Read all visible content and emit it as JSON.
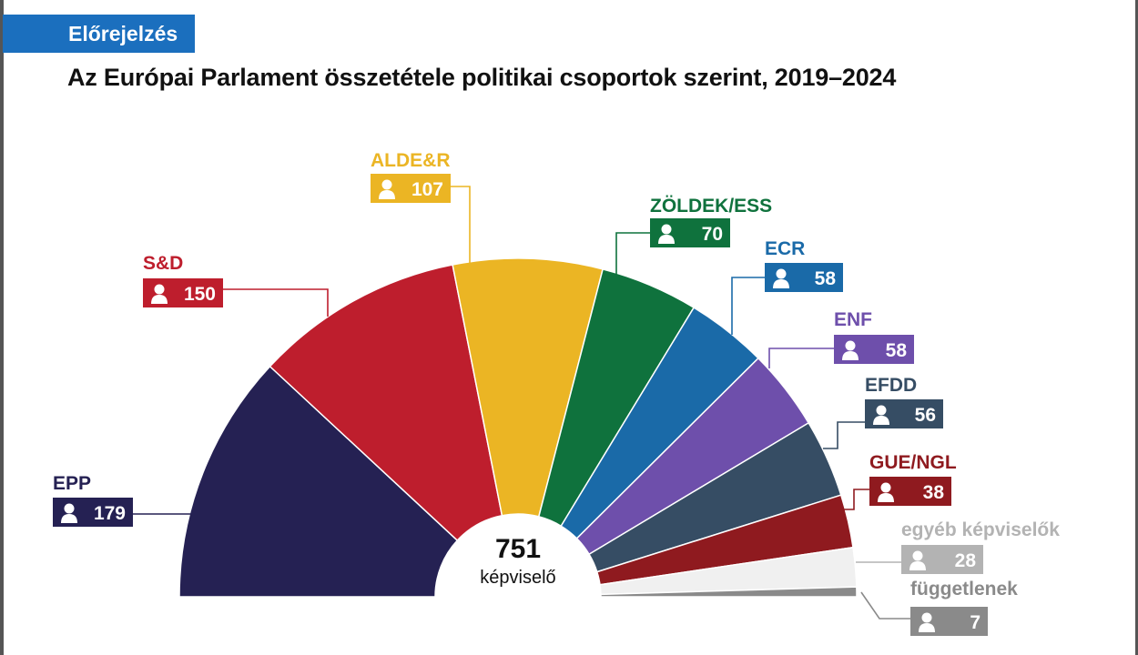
{
  "header": {
    "tag": "Előrejelzés",
    "title": "Az Európai Parlament összetétele politikai csoportok szerint, 2019–2024"
  },
  "chart_data": {
    "type": "pie",
    "variant": "half-donut (parliament)",
    "title": "Az Európai Parlament összetétele politikai csoportok szerint, 2019–2024",
    "center": {
      "total": "751",
      "unit": "képviselő"
    },
    "series": [
      {
        "name": "EPP",
        "value": 179,
        "color": "#252153",
        "label_color": "#252153",
        "badge_color": "#252153"
      },
      {
        "name": "S&D",
        "value": 150,
        "color": "#be1e2d",
        "label_color": "#be1e2d",
        "badge_color": "#be1e2d"
      },
      {
        "name": "ALDE&R",
        "value": 107,
        "color": "#ebb524",
        "label_color": "#ebb524",
        "badge_color": "#ebb524"
      },
      {
        "name": "ZÖLDEK/ESS",
        "value": 70,
        "color": "#0f723d",
        "label_color": "#0f723d",
        "badge_color": "#0f723d"
      },
      {
        "name": "ECR",
        "value": 58,
        "color": "#1a6aa8",
        "label_color": "#1a6aa8",
        "badge_color": "#1a6aa8"
      },
      {
        "name": "ENF",
        "value": 58,
        "color": "#6e4fab",
        "label_color": "#6e4fab",
        "badge_color": "#6e4fab"
      },
      {
        "name": "EFDD",
        "value": 56,
        "color": "#364d64",
        "label_color": "#364d64",
        "badge_color": "#364d64"
      },
      {
        "name": "GUE/NGL",
        "value": 38,
        "color": "#8f1a1f",
        "label_color": "#8f1a1f",
        "badge_color": "#8f1a1f"
      },
      {
        "name": "egyéb képviselők",
        "value": 28,
        "color": "#f0f0f0",
        "label_color": "#b3b3b3",
        "badge_color": "#b3b3b3"
      },
      {
        "name": "függetlenek",
        "value": 7,
        "color": "#8a8a8a",
        "label_color": "#8a8a8a",
        "badge_color": "#8a8a8a"
      }
    ],
    "person-icon": "person-icon"
  }
}
